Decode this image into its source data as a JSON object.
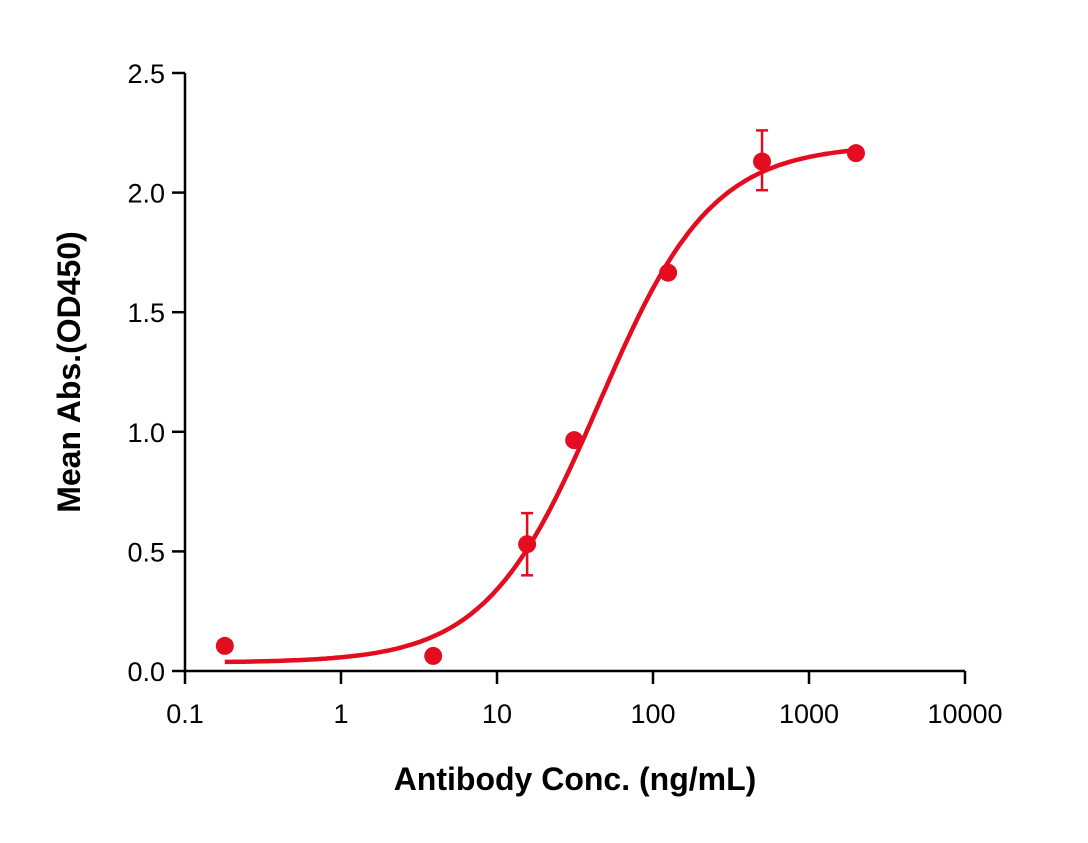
{
  "chart_data": {
    "type": "scatter",
    "title": "",
    "xlabel": "Antibody Conc. (ng/mL)",
    "ylabel": "Mean Abs.(OD450)",
    "xscale": "log",
    "xlim": [
      0.1,
      10000
    ],
    "ylim": [
      0,
      2.5
    ],
    "xticks": [
      "0.1",
      "1",
      "10",
      "100",
      "1000",
      "10000"
    ],
    "yticks": [
      "0.0",
      "0.5",
      "1.0",
      "1.5",
      "2.0",
      "2.5"
    ],
    "grid": false,
    "legend": "none",
    "color": "#e30d1f",
    "points": [
      {
        "x": 0.18,
        "y": 0.105
      },
      {
        "x": 3.9,
        "y": 0.063
      },
      {
        "x": 15.6,
        "y": 0.53,
        "err_low": 0.4,
        "err_high": 0.66
      },
      {
        "x": 31.25,
        "y": 0.965
      },
      {
        "x": 125,
        "y": 1.665
      },
      {
        "x": 500,
        "y": 2.13,
        "err_low": 2.01,
        "err_high": 2.26
      },
      {
        "x": 2000,
        "y": 2.165
      }
    ],
    "fit": {
      "model": "4PL",
      "bottom": 0.035,
      "top": 2.2,
      "ec50": 45,
      "hill": 1.2,
      "x_range": [
        0.18,
        2000
      ]
    }
  }
}
